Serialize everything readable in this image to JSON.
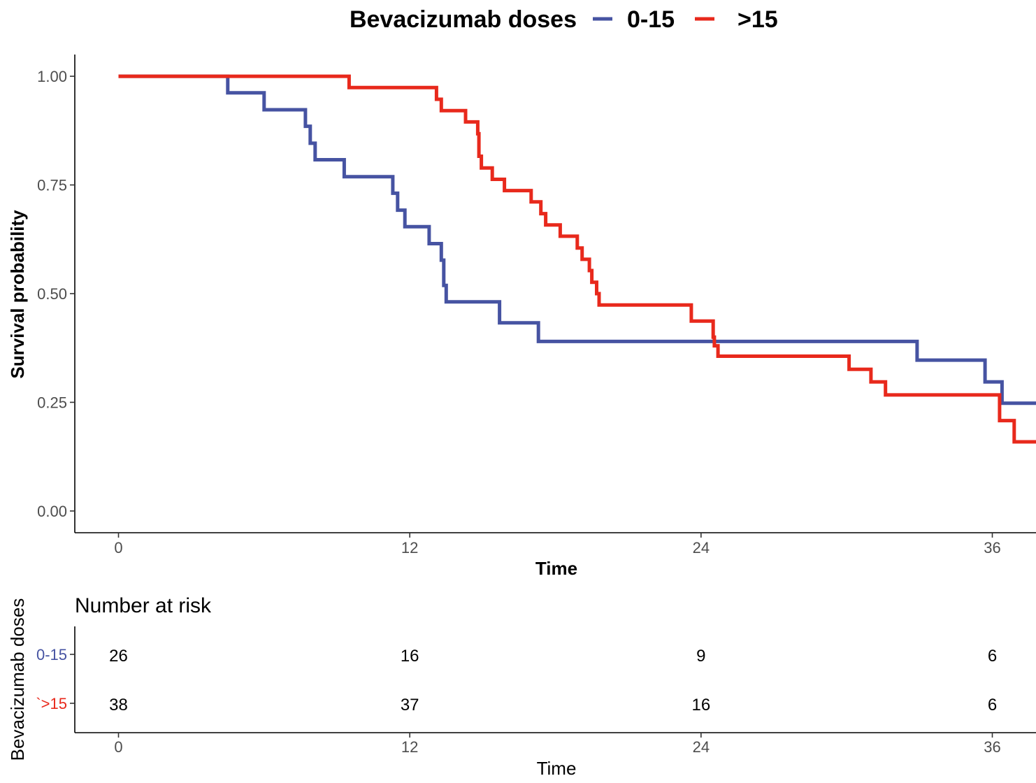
{
  "chart_data": {
    "type": "line",
    "subtype": "kaplan-meier step",
    "xlabel": "Time",
    "ylabel": "Survival probability",
    "xlim": [
      -1.8,
      37.8
    ],
    "ylim": [
      -0.05,
      1.05
    ],
    "x_ticks": [
      0,
      12,
      24,
      36
    ],
    "y_ticks": [
      0,
      0.25,
      0.5,
      0.75,
      1.0
    ],
    "y_tick_labels": [
      "0.00",
      "0.25",
      "0.50",
      "0.75",
      "1.00"
    ],
    "grid": false,
    "legend": {
      "title": "Bevacizumab doses",
      "placement": "top"
    },
    "series": [
      {
        "name": "0-15",
        "color": "#4653a2",
        "steps": [
          [
            0,
            1.0
          ],
          [
            4.5,
            0.962
          ],
          [
            6.0,
            0.923
          ],
          [
            7.7,
            0.885
          ],
          [
            7.9,
            0.846
          ],
          [
            8.1,
            0.808
          ],
          [
            9.3,
            0.769
          ],
          [
            11.3,
            0.731
          ],
          [
            11.5,
            0.692
          ],
          [
            11.8,
            0.654
          ],
          [
            12.8,
            0.615
          ],
          [
            13.3,
            0.577
          ],
          [
            13.4,
            0.519
          ],
          [
            13.5,
            0.481
          ],
          [
            15.7,
            0.433
          ],
          [
            17.3,
            0.39
          ],
          [
            32.9,
            0.347
          ],
          [
            35.7,
            0.297
          ],
          [
            36.4,
            0.248
          ],
          [
            37.8,
            0.248
          ]
        ]
      },
      {
        "name": ">15",
        "color": "#e8291c",
        "steps": [
          [
            0,
            1.0
          ],
          [
            9.5,
            0.974
          ],
          [
            13.1,
            0.947
          ],
          [
            13.3,
            0.921
          ],
          [
            14.3,
            0.895
          ],
          [
            14.8,
            0.868
          ],
          [
            14.85,
            0.816
          ],
          [
            14.95,
            0.789
          ],
          [
            15.4,
            0.763
          ],
          [
            15.9,
            0.737
          ],
          [
            17.0,
            0.711
          ],
          [
            17.4,
            0.684
          ],
          [
            17.6,
            0.658
          ],
          [
            18.2,
            0.632
          ],
          [
            18.9,
            0.605
          ],
          [
            19.1,
            0.579
          ],
          [
            19.4,
            0.553
          ],
          [
            19.5,
            0.526
          ],
          [
            19.7,
            0.5
          ],
          [
            19.8,
            0.474
          ],
          [
            23.6,
            0.437
          ],
          [
            24.5,
            0.4
          ],
          [
            24.55,
            0.38
          ],
          [
            24.7,
            0.356
          ],
          [
            30.1,
            0.326
          ],
          [
            31.0,
            0.297
          ],
          [
            31.6,
            0.267
          ],
          [
            36.3,
            0.208
          ],
          [
            36.9,
            0.159
          ],
          [
            37.8,
            0.159
          ]
        ]
      }
    ],
    "risk_table": {
      "title": "Number at risk",
      "ylabel": "Bevacizumab doses",
      "xlabel": "Time",
      "times": [
        0,
        12,
        24,
        36
      ],
      "time_labels": [
        "0",
        "12",
        "24",
        "36"
      ],
      "rows": [
        {
          "name": "0-15",
          "color": "#4653a2",
          "values": [
            "26",
            "16",
            "9",
            "6"
          ]
        },
        {
          "name": "`>15",
          "color": "#e8291c",
          "values": [
            "38",
            "37",
            "16",
            "6"
          ]
        }
      ]
    }
  }
}
